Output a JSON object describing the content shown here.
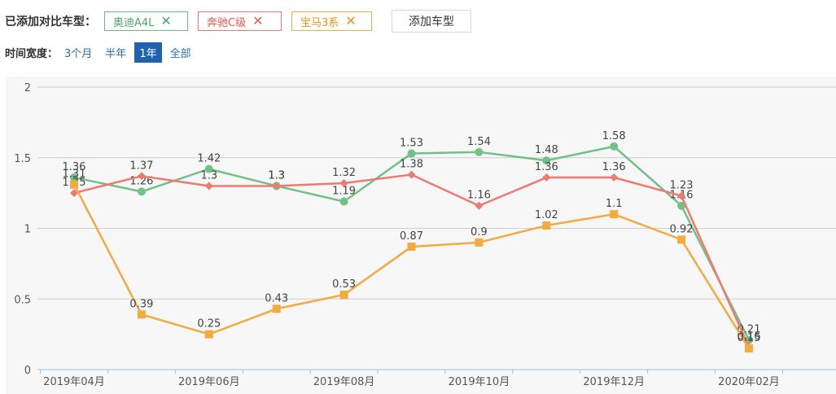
{
  "header": {
    "added_label": "已添加对比车型：",
    "tags": [
      {
        "name": "奥迪A4L",
        "close": "✕"
      },
      {
        "name": "奔驰C级",
        "close": "✕"
      },
      {
        "name": "宝马3系",
        "close": "✕"
      }
    ],
    "add_button": "添加车型"
  },
  "time_range": {
    "label": "时间宽度：",
    "options": [
      "3个月",
      "半年",
      "1年",
      "全部"
    ],
    "selected": "1年"
  },
  "colors": {
    "audi": "#72c287",
    "benz": "#ef7a70",
    "bmw": "#f3ab40",
    "grid": "#cfcfcf",
    "axis": "#9ec6e0"
  },
  "chart_data": {
    "type": "line",
    "x": [
      "2019-04",
      "2019-05",
      "2019-06",
      "2019-07",
      "2019-08",
      "2019-09",
      "2019-10",
      "2019-11",
      "2019-12",
      "2020-01",
      "2020-02"
    ],
    "x_tick_labels": [
      "2019年04月",
      "2019年06月",
      "2019年08月",
      "2019年10月",
      "2019年12月",
      "2020年02月"
    ],
    "y_tick_labels": [
      "0",
      "0.5",
      "1",
      "1.5",
      "2"
    ],
    "ylim": [
      0,
      2
    ],
    "grid": true,
    "series": [
      {
        "name": "奥迪A4L",
        "marker": "circle",
        "values": [
          1.36,
          1.26,
          1.42,
          1.3,
          1.19,
          1.53,
          1.54,
          1.48,
          1.58,
          1.16,
          0.21
        ],
        "labels": [
          "1.36",
          "1.26",
          "1.42",
          "1.3",
          "1.19",
          "1.53",
          "1.54",
          "1.48",
          "1.58",
          "1.16",
          "0.21"
        ]
      },
      {
        "name": "奔驰C级",
        "marker": "diamond",
        "values": [
          1.25,
          1.37,
          1.3,
          1.3,
          1.32,
          1.38,
          1.16,
          1.36,
          1.36,
          1.23,
          0.16
        ],
        "labels": [
          "1.25",
          "1.37",
          "1.3",
          "1.3",
          "1.32",
          "1.38",
          "1.16",
          "1.36",
          "1.36",
          "1.23",
          "0.16"
        ]
      },
      {
        "name": "宝马3系",
        "marker": "square",
        "values": [
          1.31,
          0.39,
          0.25,
          0.43,
          0.53,
          0.87,
          0.9,
          1.02,
          1.1,
          0.92,
          0.15
        ],
        "labels": [
          "1.31",
          "0.39",
          "0.25",
          "0.43",
          "0.53",
          "0.87",
          "0.9",
          "1.02",
          "1.1",
          "0.92",
          "0.15"
        ]
      }
    ]
  }
}
